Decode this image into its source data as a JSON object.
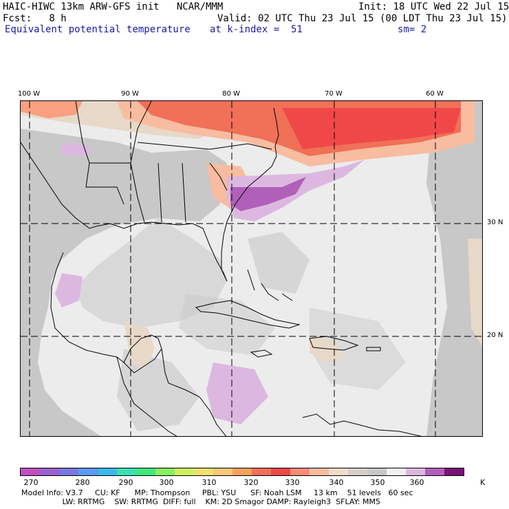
{
  "header": {
    "line1_left": "HAIC-HIWC 13km ARW-GFS init   NCAR/MMM",
    "line1_right": "Init: 18 UTC Wed 22 Jul 15",
    "line2_left": "Fcst:   8 h",
    "line2_right": "Valid: 02 UTC Thu 23 Jul 15 (00 LDT Thu 23 Jul 15)",
    "field_name": "Equivalent potential temperature",
    "level": "at k-index =  51",
    "smoothing": "sm= 2"
  },
  "map": {
    "longitude_labels": [
      "100 W",
      "90 W",
      "80 W",
      "70 W",
      "60 W"
    ],
    "latitude_labels": [
      "30 N",
      "20 N"
    ]
  },
  "colorbar": {
    "colors": [
      "#c050c0",
      "#9a60d0",
      "#7a78e0",
      "#5a9af0",
      "#3ab8e8",
      "#3ae0b0",
      "#40e878",
      "#8af060",
      "#d0f060",
      "#f0e070",
      "#f8c878",
      "#f8a060",
      "#f07058",
      "#f04848",
      "#f88c78",
      "#f8bca0",
      "#f0dcc8",
      "#d8d0c8",
      "#c8c8c8",
      "#f0f0f0",
      "#dcb8e0",
      "#b060b8",
      "#7a107a"
    ],
    "labels": [
      "270",
      "280",
      "290",
      "300",
      "310",
      "320",
      "330",
      "340",
      "350",
      "360"
    ],
    "unit": "K"
  },
  "footer": {
    "line1": "Model Info: V3.7     CU: KF      MP: Thompson     PBL: YSU      SF: Noah LSM     13 km    51 levels   60 sec",
    "line2": "                 LW: RRTMG    SW: RRTMG  DIFF: full    KM: 2D Smagor DAMP: Rayleigh3  SFLAY: MM5"
  }
}
